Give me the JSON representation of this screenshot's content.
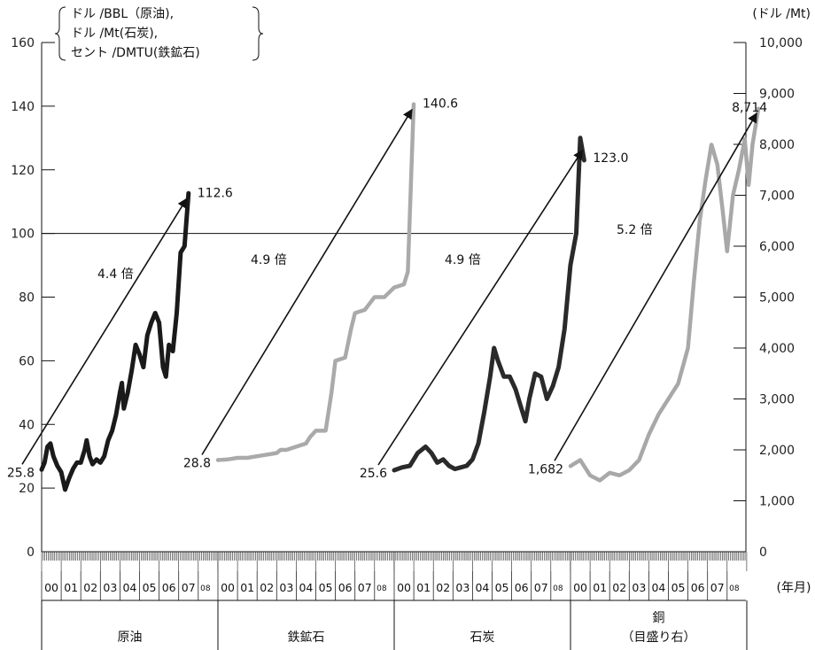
{
  "chart_data": {
    "type": "line",
    "left_axis": {
      "label_lines": [
        "ドル /BBL（原油),",
        "ドル /Mt(石炭),",
        "セント /DMTU(鉄鉱石)"
      ],
      "ticks": [
        0,
        20,
        40,
        60,
        80,
        100,
        120,
        140,
        160
      ],
      "ylim": [
        0,
        160
      ]
    },
    "right_axis": {
      "label": "(ドル /Mt)",
      "ticks": [
        "0",
        "1,000",
        "2,000",
        "3,000",
        "4,000",
        "5,000",
        "6,000",
        "7,000",
        "8,000",
        "9,000",
        "10,000"
      ],
      "ylim": [
        0,
        10000
      ]
    },
    "x_axis": {
      "unit_label": "(年月)",
      "years": [
        "00",
        "01",
        "02",
        "03",
        "04",
        "05",
        "06",
        "07",
        "08"
      ]
    },
    "reference_line": 100,
    "series": [
      {
        "name": "原油",
        "axis": "left",
        "color": "#1a1a1a",
        "start_label": "25.8",
        "end_label": "112.6",
        "ratio_label": "4.4 倍",
        "points": [
          [
            0,
            25.8
          ],
          [
            0.15,
            28
          ],
          [
            0.3,
            33
          ],
          [
            0.45,
            34
          ],
          [
            0.6,
            30
          ],
          [
            0.8,
            27
          ],
          [
            1.0,
            25
          ],
          [
            1.2,
            19.5
          ],
          [
            1.4,
            23
          ],
          [
            1.6,
            26
          ],
          [
            1.8,
            28
          ],
          [
            2.0,
            28
          ],
          [
            2.2,
            32
          ],
          [
            2.3,
            35
          ],
          [
            2.45,
            30
          ],
          [
            2.6,
            27.5
          ],
          [
            2.8,
            29
          ],
          [
            3.0,
            28
          ],
          [
            3.2,
            30
          ],
          [
            3.4,
            35
          ],
          [
            3.6,
            38
          ],
          [
            3.8,
            43
          ],
          [
            4.0,
            50
          ],
          [
            4.1,
            53
          ],
          [
            4.2,
            45
          ],
          [
            4.4,
            50
          ],
          [
            4.6,
            57
          ],
          [
            4.8,
            65
          ],
          [
            5.0,
            62
          ],
          [
            5.2,
            58
          ],
          [
            5.4,
            68
          ],
          [
            5.6,
            72
          ],
          [
            5.8,
            75
          ],
          [
            6.0,
            72
          ],
          [
            6.2,
            58
          ],
          [
            6.35,
            55
          ],
          [
            6.5,
            65
          ],
          [
            6.7,
            63
          ],
          [
            6.9,
            75
          ],
          [
            7.1,
            94
          ],
          [
            7.3,
            96
          ],
          [
            7.5,
            112.6
          ]
        ]
      },
      {
        "name": "鉄鉱石",
        "axis": "left",
        "color": "#aaaaaa",
        "start_label": "28.8",
        "end_label": "140.6",
        "ratio_label": "4.9 倍",
        "points": [
          [
            0,
            28.8
          ],
          [
            0.5,
            29
          ],
          [
            1.0,
            29.5
          ],
          [
            1.5,
            29.5
          ],
          [
            2.0,
            30
          ],
          [
            2.5,
            30.5
          ],
          [
            3.0,
            31
          ],
          [
            3.2,
            32
          ],
          [
            3.5,
            32
          ],
          [
            4.0,
            33
          ],
          [
            4.5,
            34
          ],
          [
            4.7,
            36
          ],
          [
            5.0,
            38
          ],
          [
            5.5,
            38
          ],
          [
            5.8,
            50
          ],
          [
            6.0,
            60
          ],
          [
            6.5,
            61
          ],
          [
            6.8,
            70
          ],
          [
            7.0,
            75
          ],
          [
            7.5,
            76
          ],
          [
            8.0,
            80
          ],
          [
            8.5,
            80
          ],
          [
            9.0,
            83
          ],
          [
            9.5,
            84
          ],
          [
            9.7,
            88
          ],
          [
            10.0,
            140.6
          ]
        ]
      },
      {
        "name": "石炭",
        "axis": "left",
        "color": "#2a2a2a",
        "start_label": "25.6",
        "end_label": "123.0",
        "ratio_label": "4.9 倍",
        "points": [
          [
            0,
            25.6
          ],
          [
            0.4,
            26.5
          ],
          [
            0.8,
            27
          ],
          [
            1.2,
            31
          ],
          [
            1.6,
            33
          ],
          [
            1.9,
            31
          ],
          [
            2.2,
            28
          ],
          [
            2.5,
            29
          ],
          [
            2.8,
            27
          ],
          [
            3.1,
            26
          ],
          [
            3.4,
            26.5
          ],
          [
            3.7,
            27
          ],
          [
            4.0,
            29
          ],
          [
            4.3,
            34
          ],
          [
            4.6,
            44
          ],
          [
            4.9,
            55
          ],
          [
            5.1,
            64
          ],
          [
            5.3,
            60
          ],
          [
            5.6,
            55
          ],
          [
            5.9,
            55
          ],
          [
            6.2,
            51
          ],
          [
            6.5,
            45
          ],
          [
            6.7,
            41
          ],
          [
            6.9,
            48
          ],
          [
            7.2,
            56
          ],
          [
            7.5,
            55
          ],
          [
            7.8,
            48
          ],
          [
            8.1,
            52
          ],
          [
            8.4,
            58
          ],
          [
            8.7,
            70
          ],
          [
            9.0,
            90
          ],
          [
            9.3,
            100
          ],
          [
            9.5,
            130
          ],
          [
            9.7,
            123
          ]
        ]
      },
      {
        "name": "銅",
        "axis": "right",
        "color": "#a8a8a8",
        "start_label": "1,682",
        "end_label": "8,714",
        "ratio_label": "5.2 倍",
        "points": [
          [
            0,
            1682
          ],
          [
            0.5,
            1800
          ],
          [
            1.0,
            1500
          ],
          [
            1.5,
            1400
          ],
          [
            2.0,
            1550
          ],
          [
            2.5,
            1500
          ],
          [
            3.0,
            1600
          ],
          [
            3.5,
            1800
          ],
          [
            4.0,
            2300
          ],
          [
            4.5,
            2700
          ],
          [
            5.0,
            3000
          ],
          [
            5.5,
            3300
          ],
          [
            6.0,
            4000
          ],
          [
            6.3,
            5300
          ],
          [
            6.6,
            6500
          ],
          [
            6.9,
            7300
          ],
          [
            7.2,
            8000
          ],
          [
            7.5,
            7600
          ],
          [
            7.8,
            6600
          ],
          [
            8.0,
            5900
          ],
          [
            8.3,
            7000
          ],
          [
            8.6,
            7500
          ],
          [
            8.9,
            8100
          ],
          [
            9.1,
            7200
          ],
          [
            9.3,
            8000
          ],
          [
            9.6,
            8714
          ]
        ]
      }
    ],
    "bottom_labels": [
      {
        "lines": [
          "原油"
        ]
      },
      {
        "lines": [
          "鉄鉱石"
        ]
      },
      {
        "lines": [
          "石炭"
        ]
      },
      {
        "lines": [
          "銅",
          "（目盛り右）"
        ]
      }
    ]
  }
}
